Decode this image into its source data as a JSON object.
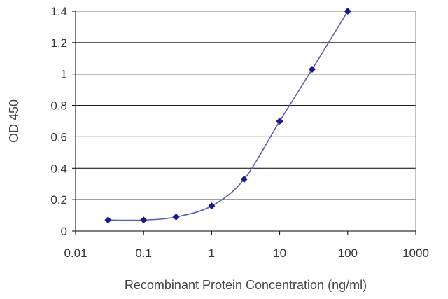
{
  "chart_data": {
    "type": "line",
    "xscale": "log",
    "x": [
      0.03,
      0.1,
      0.3,
      1,
      3,
      10,
      30,
      100
    ],
    "series": [
      {
        "values": [
          0.07,
          0.07,
          0.09,
          0.16,
          0.33,
          0.7,
          1.03,
          1.4
        ]
      }
    ],
    "xlabel": "Recombinant Protein Concentration (ng/ml)",
    "ylabel": "OD 450",
    "xlim": [
      0.01,
      1000
    ],
    "ylim": [
      0,
      1.4
    ],
    "xticks": [
      0.01,
      0.1,
      1,
      10,
      100,
      1000
    ],
    "xtick_labels": [
      "0.01",
      "0.1",
      "1",
      "10",
      "100",
      "1000"
    ],
    "yticks": [
      0,
      0.2,
      0.4,
      0.6,
      0.8,
      1,
      1.2,
      1.4
    ],
    "ytick_labels": [
      "0",
      "0.2",
      "0.4",
      "0.6",
      "0.8",
      "1",
      "1.2",
      "1.4"
    ],
    "grid": "horizontal",
    "colors": {
      "line": "#5560b5",
      "marker": "#1a1a8c",
      "grid": "#000000",
      "frame": "#808080"
    }
  }
}
